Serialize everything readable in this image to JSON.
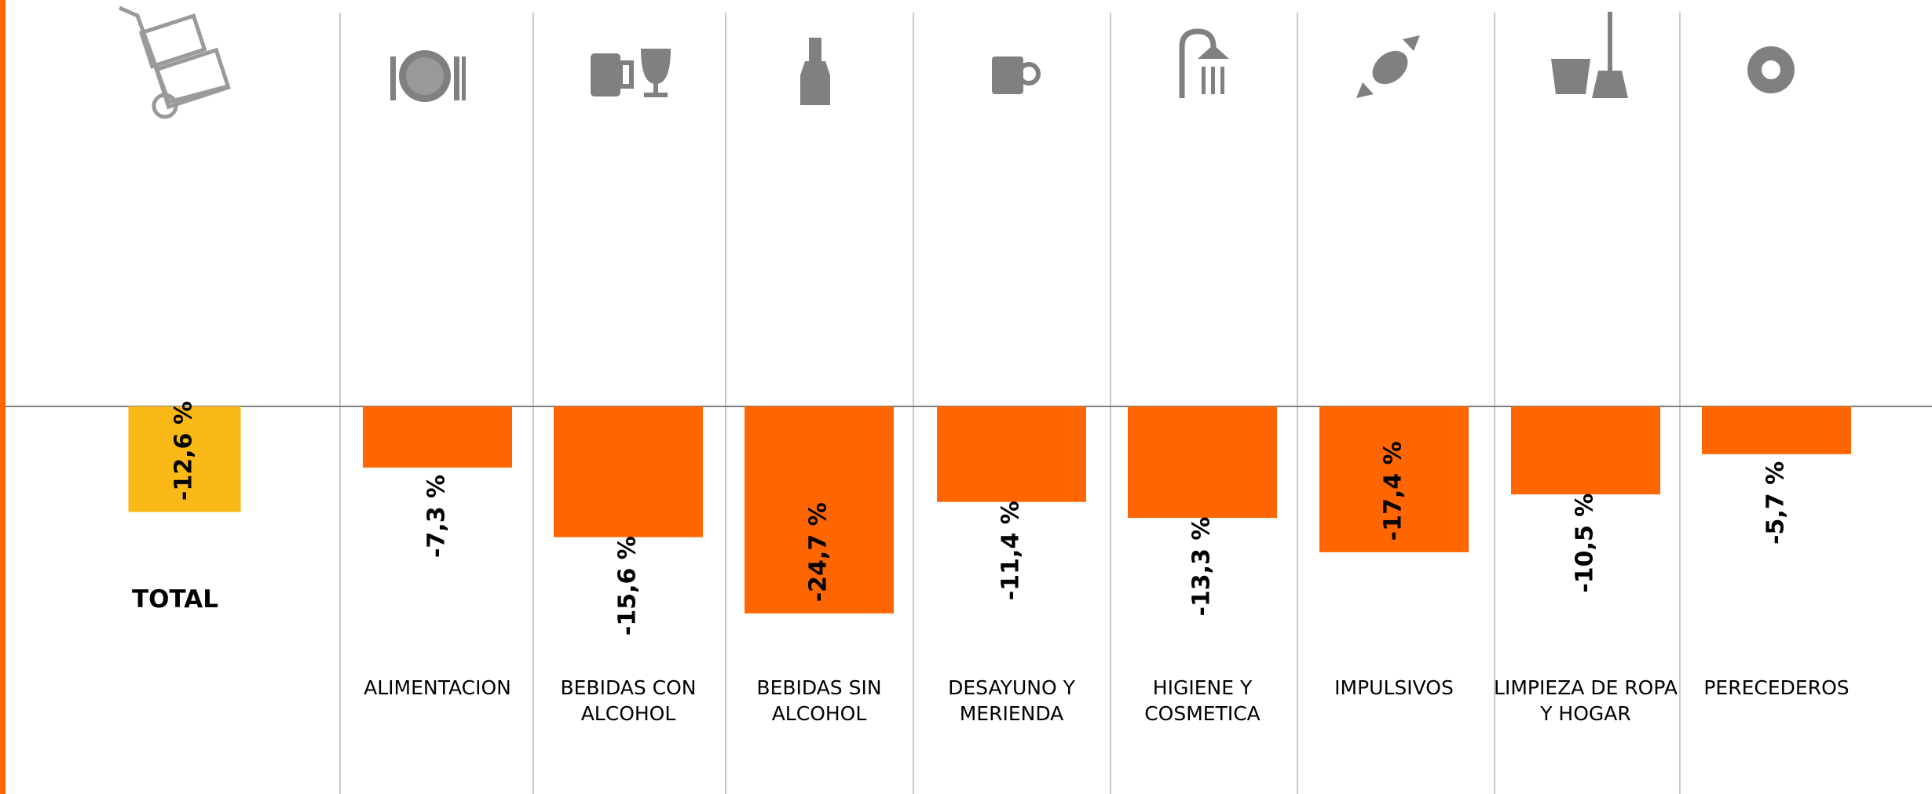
{
  "chart_data": {
    "type": "bar",
    "categories": [
      "TOTAL",
      "ALIMENTACION",
      "BEBIDAS CON ALCOHOL",
      "BEBIDAS SIN ALCOHOL",
      "DESAYUNO Y MERIENDA",
      "HIGIENE Y COSMETICA",
      "IMPULSIVOS",
      "LIMPIEZA DE ROPA Y HOGAR",
      "PERECEDEROS"
    ],
    "values": [
      -12.6,
      -7.3,
      -15.6,
      -24.7,
      -11.4,
      -13.3,
      -17.4,
      -10.5,
      -5.7
    ],
    "value_labels": [
      "-12,6 %",
      "-7,3 %",
      "-15,6 %",
      "-24,7 %",
      "-11,4 %",
      "-13,3 %",
      "-17,4 %",
      "-10,5 %",
      "-5,7 %"
    ],
    "colors": [
      "#fbb917",
      "#ff6600",
      "#ff6600",
      "#ff6600",
      "#ff6600",
      "#ff6600",
      "#ff6600",
      "#ff6600",
      "#ff6600"
    ],
    "ylim": [
      -25,
      0
    ]
  }
}
